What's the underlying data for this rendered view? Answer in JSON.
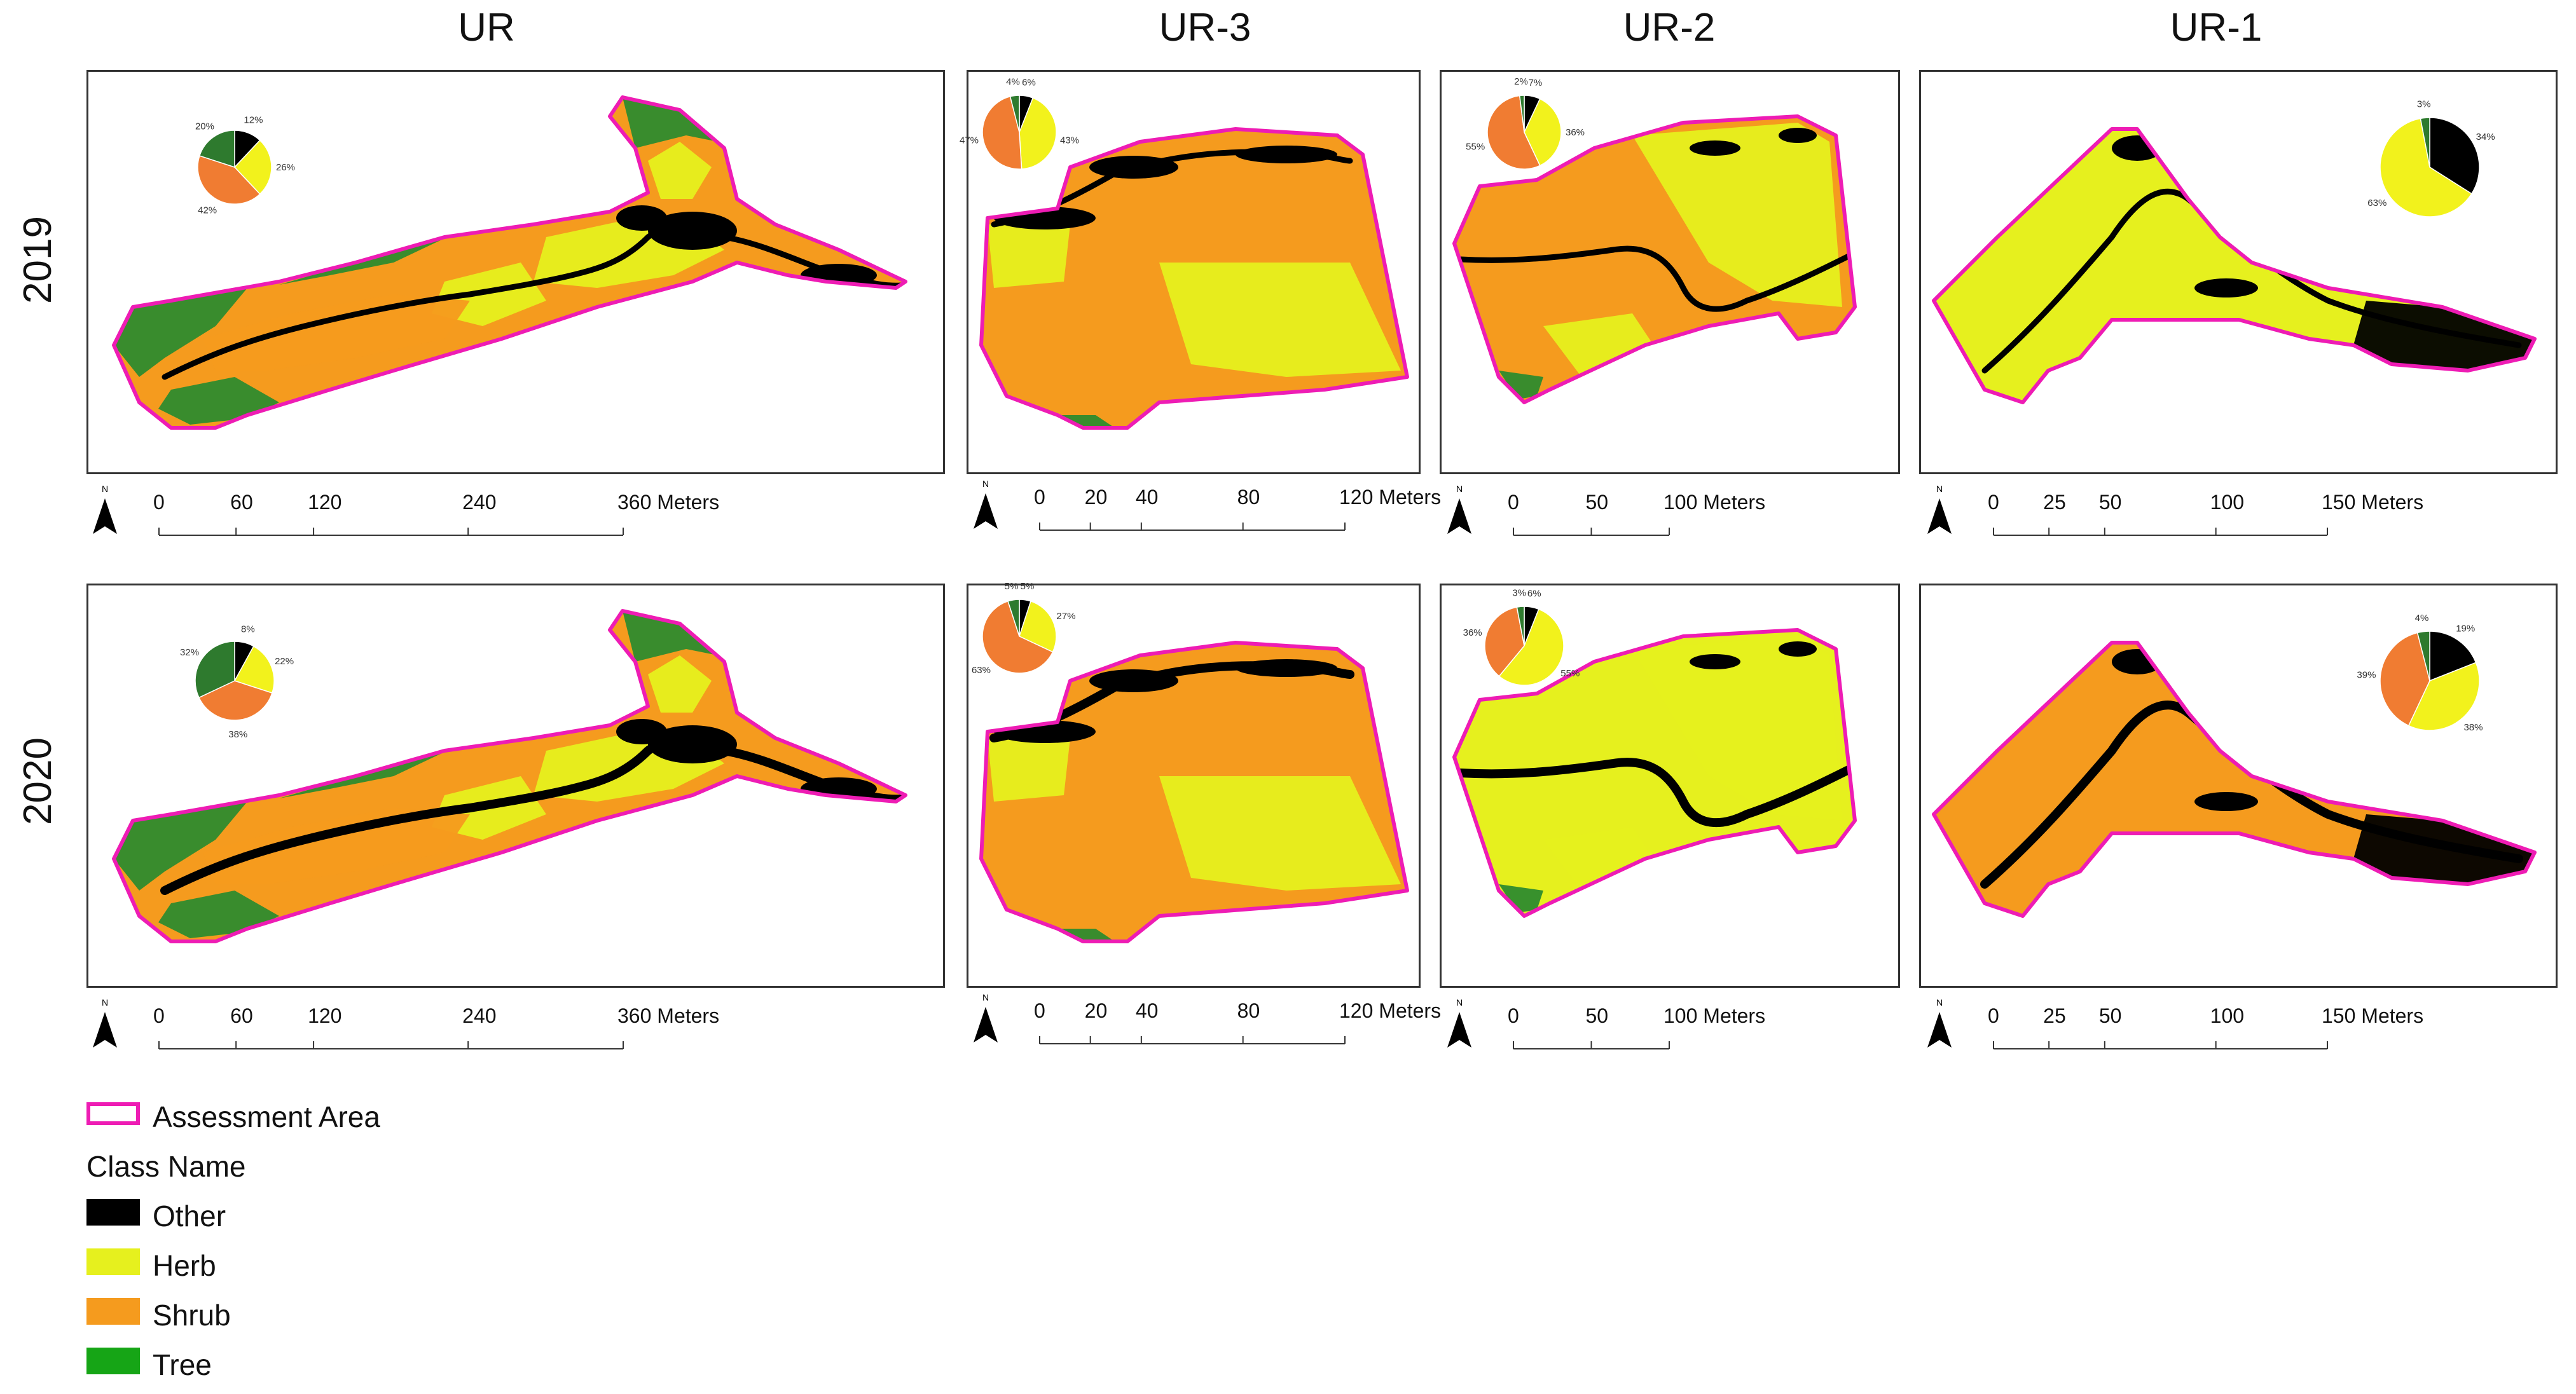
{
  "columns": [
    "UR",
    "UR-3",
    "UR-2",
    "UR-1"
  ],
  "rows": [
    "2019",
    "2020"
  ],
  "classes": [
    {
      "name": "Other",
      "color": "#000000"
    },
    {
      "name": "Herb",
      "color": "#e6f01e"
    },
    {
      "name": "Shrub",
      "color": "#f59b1e"
    },
    {
      "name": "Tree",
      "color": "#2e8b2e"
    }
  ],
  "pie_colors": {
    "Other": "#000000",
    "Herb": "#f2f21c",
    "Shrub": "#f07c32",
    "Tree": "#2e7a2e"
  },
  "legend": {
    "assessment_area": "Assessment Area",
    "class_name_title": "Class Name",
    "boundary_color": "#ee1cb4"
  },
  "scalebars": {
    "UR": {
      "ticks": [
        "0",
        "60",
        "120",
        "240",
        "360 Meters"
      ]
    },
    "UR-3": {
      "ticks": [
        "0",
        "20",
        "40",
        "80",
        "120 Meters"
      ]
    },
    "UR-2": {
      "ticks": [
        "0",
        "50",
        "100 Meters"
      ]
    },
    "UR-1": {
      "ticks": [
        "0",
        "25",
        "50",
        "100",
        "150 Meters"
      ]
    }
  },
  "north_label": "N",
  "panels": [
    {
      "site": "UR",
      "year": "2019",
      "pie": {
        "Other": 12,
        "Herb": 26,
        "Shrub": 42,
        "Tree": 20
      },
      "labels": {
        "Other": "12%",
        "Herb": "26%",
        "Shrub": "42%",
        "Tree": "20%"
      }
    },
    {
      "site": "UR-3",
      "year": "2019",
      "pie": {
        "Other": 6,
        "Herb": 43,
        "Shrub": 47,
        "Tree": 4
      },
      "labels": {
        "Other": "6%",
        "Herb": "43%",
        "Shrub": "47%",
        "Tree": "4%"
      }
    },
    {
      "site": "UR-2",
      "year": "2019",
      "pie": {
        "Other": 7,
        "Herb": 36,
        "Shrub": 55,
        "Tree": 2
      },
      "labels": {
        "Other": "7%",
        "Herb": "36%",
        "Shrub": "55%",
        "Tree": "2%"
      }
    },
    {
      "site": "UR-1",
      "year": "2019",
      "pie": {
        "Other": 34,
        "Herb": 63,
        "Shrub": 0,
        "Tree": 3
      },
      "labels": {
        "Other": "34%",
        "Herb": "63%",
        "Shrub": "",
        "Tree": "3%"
      }
    },
    {
      "site": "UR",
      "year": "2020",
      "pie": {
        "Other": 8,
        "Herb": 22,
        "Shrub": 38,
        "Tree": 32
      },
      "labels": {
        "Other": "8%",
        "Herb": "22%",
        "Shrub": "38%",
        "Tree": "32%"
      }
    },
    {
      "site": "UR-3",
      "year": "2020",
      "pie": {
        "Other": 5,
        "Herb": 27,
        "Shrub": 63,
        "Tree": 5
      },
      "labels": {
        "Other": "5%",
        "Herb": "27%",
        "Shrub": "63%",
        "Tree": "5%"
      }
    },
    {
      "site": "UR-2",
      "year": "2020",
      "pie": {
        "Other": 6,
        "Herb": 55,
        "Shrub": 36,
        "Tree": 3
      },
      "labels": {
        "Other": "6%",
        "Herb": "55%",
        "Shrub": "36%",
        "Tree": "3%"
      }
    },
    {
      "site": "UR-1",
      "year": "2020",
      "pie": {
        "Other": 19,
        "Herb": 38,
        "Shrub": 39,
        "Tree": 4
      },
      "labels": {
        "Other": "19%",
        "Herb": "38%",
        "Shrub": "39%",
        "Tree": "4%"
      }
    }
  ]
}
